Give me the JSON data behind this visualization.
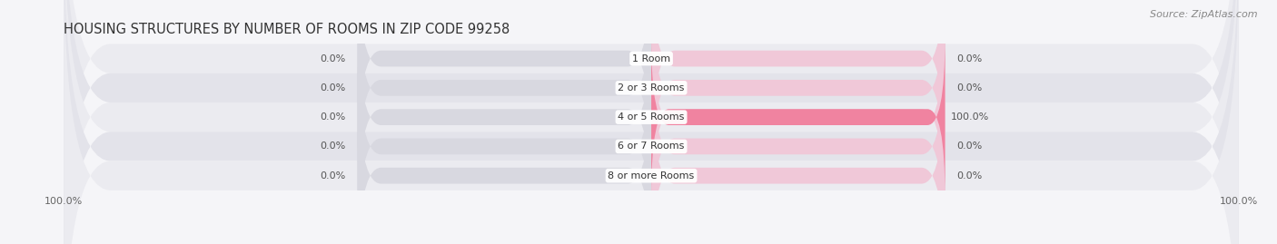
{
  "title": "HOUSING STRUCTURES BY NUMBER OF ROOMS IN ZIP CODE 99258",
  "source": "Source: ZipAtlas.com",
  "categories": [
    "1 Room",
    "2 or 3 Rooms",
    "4 or 5 Rooms",
    "6 or 7 Rooms",
    "8 or more Rooms"
  ],
  "owner_values": [
    0.0,
    0.0,
    0.0,
    0.0,
    0.0
  ],
  "renter_values": [
    0.0,
    0.0,
    100.0,
    0.0,
    0.0
  ],
  "owner_color": "#6ecfcf",
  "renter_color": "#f083a0",
  "renter_color_full": "#f06090",
  "bar_bg_color_left": "#d8d8e0",
  "bar_bg_color_right": "#f0c8d8",
  "max_val": 100.0,
  "figsize": [
    14.06,
    2.69
  ],
  "dpi": 100,
  "title_fontsize": 10.5,
  "source_fontsize": 8,
  "label_fontsize": 8,
  "category_fontsize": 8,
  "legend_fontsize": 8.5,
  "tick_fontsize": 8,
  "bar_height": 0.55,
  "bg_color": "#f5f5f8",
  "row_colors": [
    "#ebebf0",
    "#e3e3ea"
  ]
}
